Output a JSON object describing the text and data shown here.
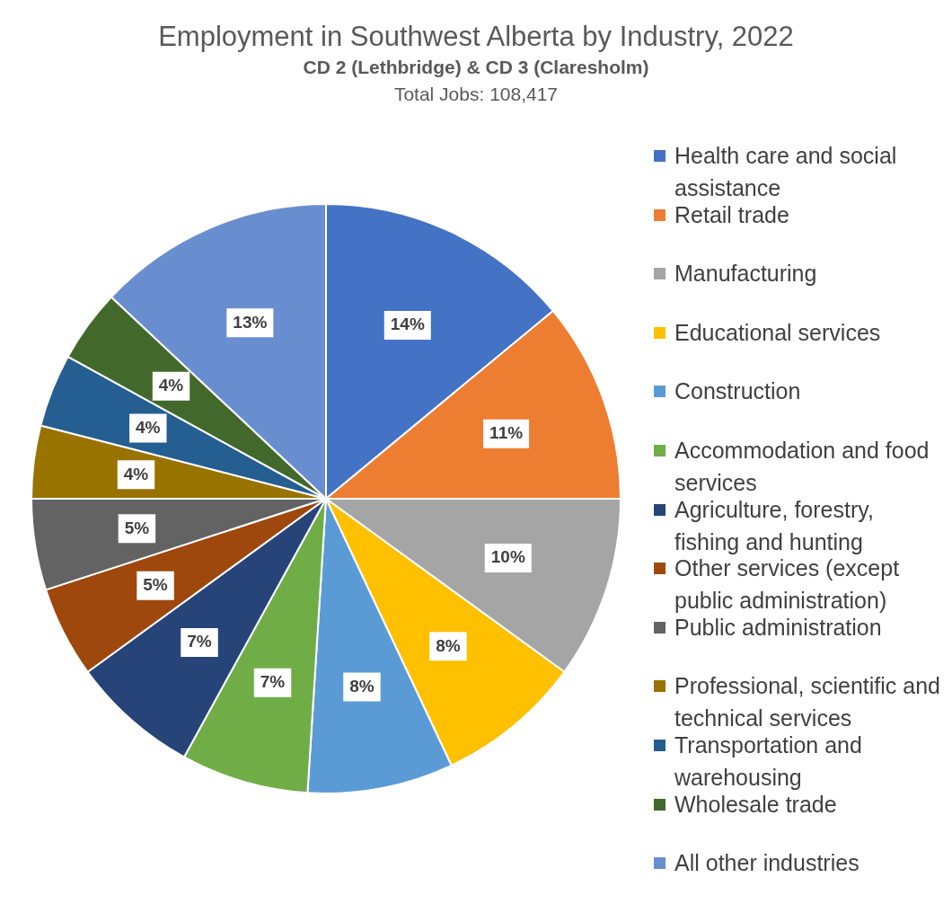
{
  "chart_data": {
    "type": "pie",
    "title": "Employment in Southwest Alberta by Industry, 2022",
    "subtitle": "CD 2 (Lethbridge) & CD 3 (Claresholm)",
    "annotations": [
      "Total Jobs: 108,417"
    ],
    "categories": [
      "Health care and social assistance",
      "Retail trade",
      "Manufacturing",
      "Educational services",
      "Construction",
      "Accommodation and food services",
      "Agriculture, forestry, fishing and hunting",
      "Other services (except public administration)",
      "Public administration",
      "Professional, scientific and technical services",
      "Transportation and warehousing",
      "Wholesale trade",
      "All other industries"
    ],
    "values": [
      14,
      11,
      10,
      8,
      8,
      7,
      7,
      5,
      5,
      4,
      4,
      4,
      13
    ],
    "value_labels": [
      "14%",
      "11%",
      "10%",
      "8%",
      "8%",
      "7%",
      "7%",
      "5%",
      "5%",
      "4%",
      "4%",
      "4%",
      "13%"
    ],
    "colors": [
      "#4472c4",
      "#ed7d31",
      "#a5a5a5",
      "#ffc000",
      "#5b9bd5",
      "#70ad47",
      "#264478",
      "#9e480e",
      "#636363",
      "#997300",
      "#255e91",
      "#43682b",
      "#698ed0"
    ],
    "legend": "right"
  }
}
